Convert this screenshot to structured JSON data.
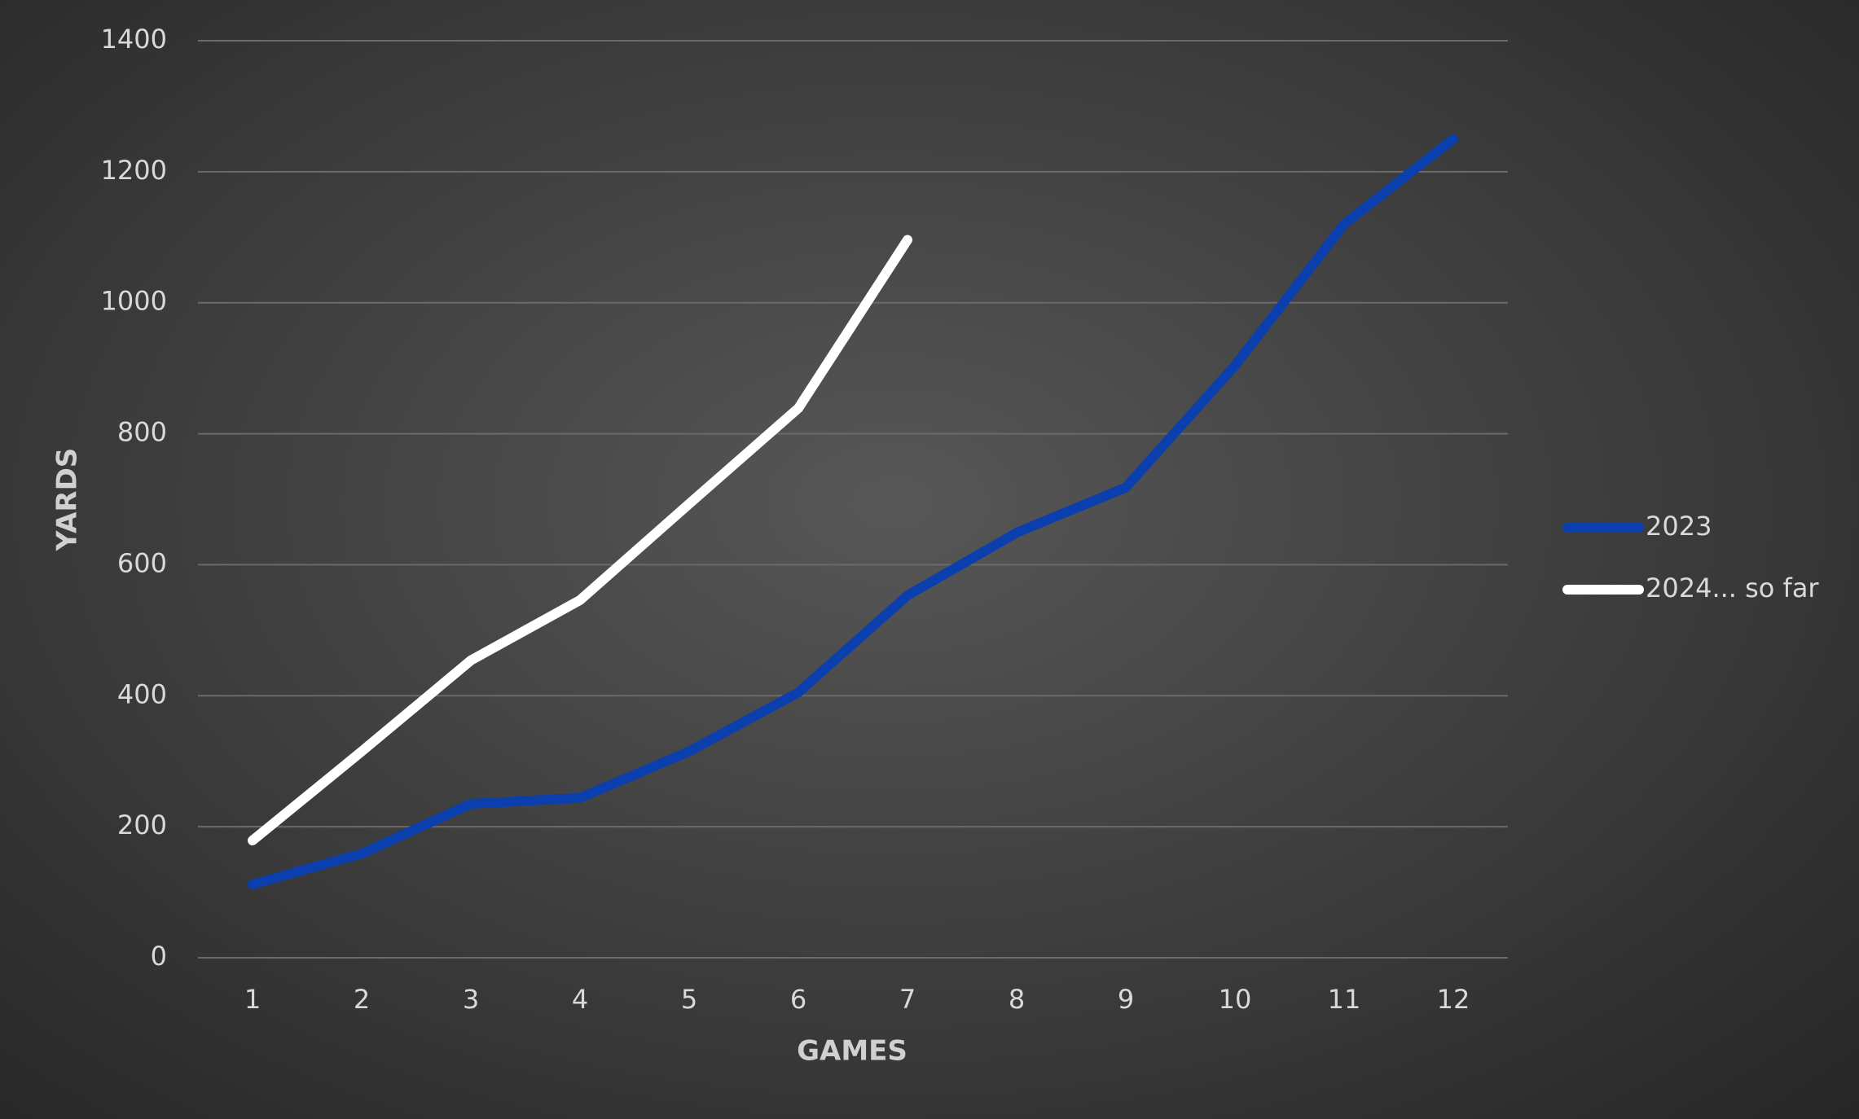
{
  "chart_data": {
    "type": "line",
    "x_label": "GAMES",
    "y_label": "YARDS",
    "categories": [
      "1",
      "2",
      "3",
      "4",
      "5",
      "6",
      "7",
      "8",
      "9",
      "10",
      "11",
      "12"
    ],
    "series": [
      {
        "name": "2023",
        "color": "#0b3fae",
        "values": [
          112,
          159,
          235,
          244,
          315,
          405,
          553,
          649,
          718,
          904,
          1120,
          1250
        ]
      },
      {
        "name": "2024... so far",
        "color": "#ffffff",
        "values": [
          179,
          315,
          454,
          546,
          693,
          839,
          1096,
          null,
          null,
          null,
          null,
          null
        ]
      }
    ],
    "ylim": [
      0,
      1400
    ],
    "yticks": [
      0,
      200,
      400,
      600,
      800,
      1000,
      1200,
      1400
    ],
    "grid": true,
    "legend": "right"
  }
}
